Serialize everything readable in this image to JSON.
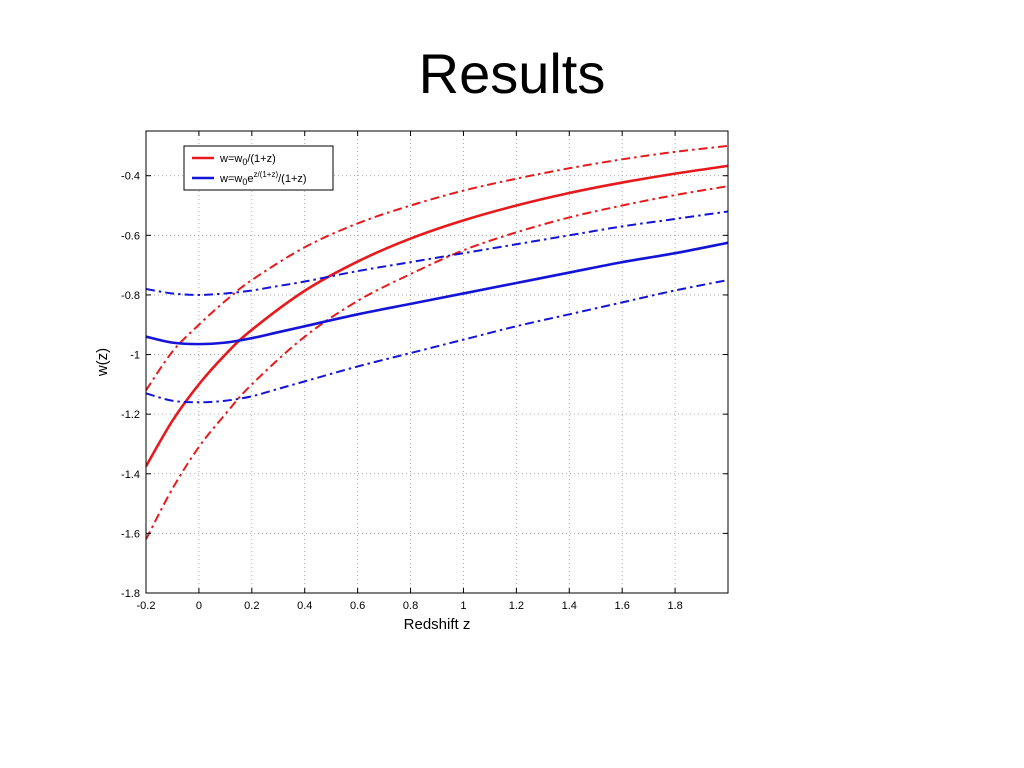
{
  "slide": {
    "title": "Results"
  },
  "chart_data": {
    "type": "line",
    "title": "",
    "xlabel": "Redshift z",
    "ylabel": "w(z)",
    "xlim": [
      -0.2,
      2.0
    ],
    "ylim": [
      -1.8,
      -0.25
    ],
    "x_ticks": [
      -0.2,
      0,
      0.2,
      0.4,
      0.6,
      0.8,
      1,
      1.2,
      1.4,
      1.6,
      1.8
    ],
    "x_tick_labels": [
      "-0.2",
      "0",
      "0.2",
      "0.4",
      "0.6",
      "0.8",
      "1",
      "1.2",
      "1.4",
      "1.6",
      "1.8"
    ],
    "y_ticks": [
      -1.8,
      -1.6,
      -1.4,
      -1.2,
      -1,
      -0.8,
      -0.6,
      -0.4
    ],
    "y_tick_labels": [
      "-1.8",
      "-1.6",
      "-1.4",
      "-1.2",
      "-1",
      "-0.8",
      "-0.6",
      "-0.4"
    ],
    "grid": true,
    "grid_style": "dotted",
    "legend_position": "top-left",
    "series": [
      {
        "name": "w=w0/(1+z)",
        "legend_parts": {
          "pre": "w=w",
          "sub": "0",
          "post": "/(1+z)"
        },
        "color": "#e8191c",
        "style": "solid",
        "in_legend": true,
        "x": [
          -0.2,
          -0.1,
          0,
          0.1,
          0.2,
          0.4,
          0.6,
          0.8,
          1.0,
          1.2,
          1.4,
          1.6,
          1.8,
          2.0
        ],
        "y": [
          -1.375,
          -1.222,
          -1.1,
          -1.0,
          -0.917,
          -0.786,
          -0.688,
          -0.611,
          -0.55,
          -0.5,
          -0.458,
          -0.423,
          -0.393,
          -0.367
        ]
      },
      {
        "name": "",
        "color": "#e8191c",
        "style": "dashdot",
        "in_legend": false,
        "x": [
          -0.2,
          -0.1,
          0,
          0.1,
          0.2,
          0.4,
          0.6,
          0.8,
          1.0,
          1.2,
          1.4,
          1.6,
          1.8,
          2.0
        ],
        "y": [
          -1.12,
          -0.99,
          -0.9,
          -0.82,
          -0.75,
          -0.64,
          -0.56,
          -0.5,
          -0.45,
          -0.41,
          -0.375,
          -0.345,
          -0.32,
          -0.3
        ]
      },
      {
        "name": "",
        "color": "#e8191c",
        "style": "dashdot",
        "in_legend": false,
        "x": [
          -0.2,
          -0.1,
          0,
          0.1,
          0.2,
          0.4,
          0.6,
          0.8,
          1.0,
          1.2,
          1.4,
          1.6,
          1.8,
          2.0
        ],
        "y": [
          -1.62,
          -1.45,
          -1.31,
          -1.2,
          -1.1,
          -0.94,
          -0.82,
          -0.73,
          -0.65,
          -0.59,
          -0.54,
          -0.5,
          -0.465,
          -0.435
        ]
      },
      {
        "name": "w=w0e^(z/(1+z))/(1+z)",
        "legend_parts": {
          "pre": "w=w",
          "sub": "0",
          "mid": "e",
          "sup": "z/(1+z)",
          "post": "/(1+z)"
        },
        "color": "#1414d8",
        "style": "solid",
        "in_legend": true,
        "x": [
          -0.2,
          -0.1,
          0,
          0.1,
          0.2,
          0.3,
          0.4,
          0.6,
          0.8,
          1.0,
          1.2,
          1.4,
          1.6,
          1.8,
          2.0
        ],
        "y": [
          -0.94,
          -0.96,
          -0.965,
          -0.96,
          -0.945,
          -0.925,
          -0.905,
          -0.865,
          -0.83,
          -0.795,
          -0.76,
          -0.725,
          -0.69,
          -0.66,
          -0.625
        ]
      },
      {
        "name": "",
        "color": "#1414d8",
        "style": "dashdot",
        "in_legend": false,
        "x": [
          -0.2,
          -0.1,
          0,
          0.1,
          0.2,
          0.3,
          0.4,
          0.6,
          0.8,
          1.0,
          1.2,
          1.4,
          1.6,
          1.8,
          2.0
        ],
        "y": [
          -0.78,
          -0.795,
          -0.8,
          -0.795,
          -0.785,
          -0.77,
          -0.755,
          -0.72,
          -0.69,
          -0.66,
          -0.63,
          -0.6,
          -0.57,
          -0.545,
          -0.52
        ]
      },
      {
        "name": "",
        "color": "#1414d8",
        "style": "dashdot",
        "in_legend": false,
        "x": [
          -0.2,
          -0.1,
          0,
          0.1,
          0.2,
          0.3,
          0.4,
          0.6,
          0.8,
          1.0,
          1.2,
          1.4,
          1.6,
          1.8,
          2.0
        ],
        "y": [
          -1.13,
          -1.155,
          -1.16,
          -1.155,
          -1.14,
          -1.115,
          -1.09,
          -1.04,
          -0.995,
          -0.95,
          -0.905,
          -0.865,
          -0.825,
          -0.785,
          -0.75
        ]
      }
    ]
  }
}
